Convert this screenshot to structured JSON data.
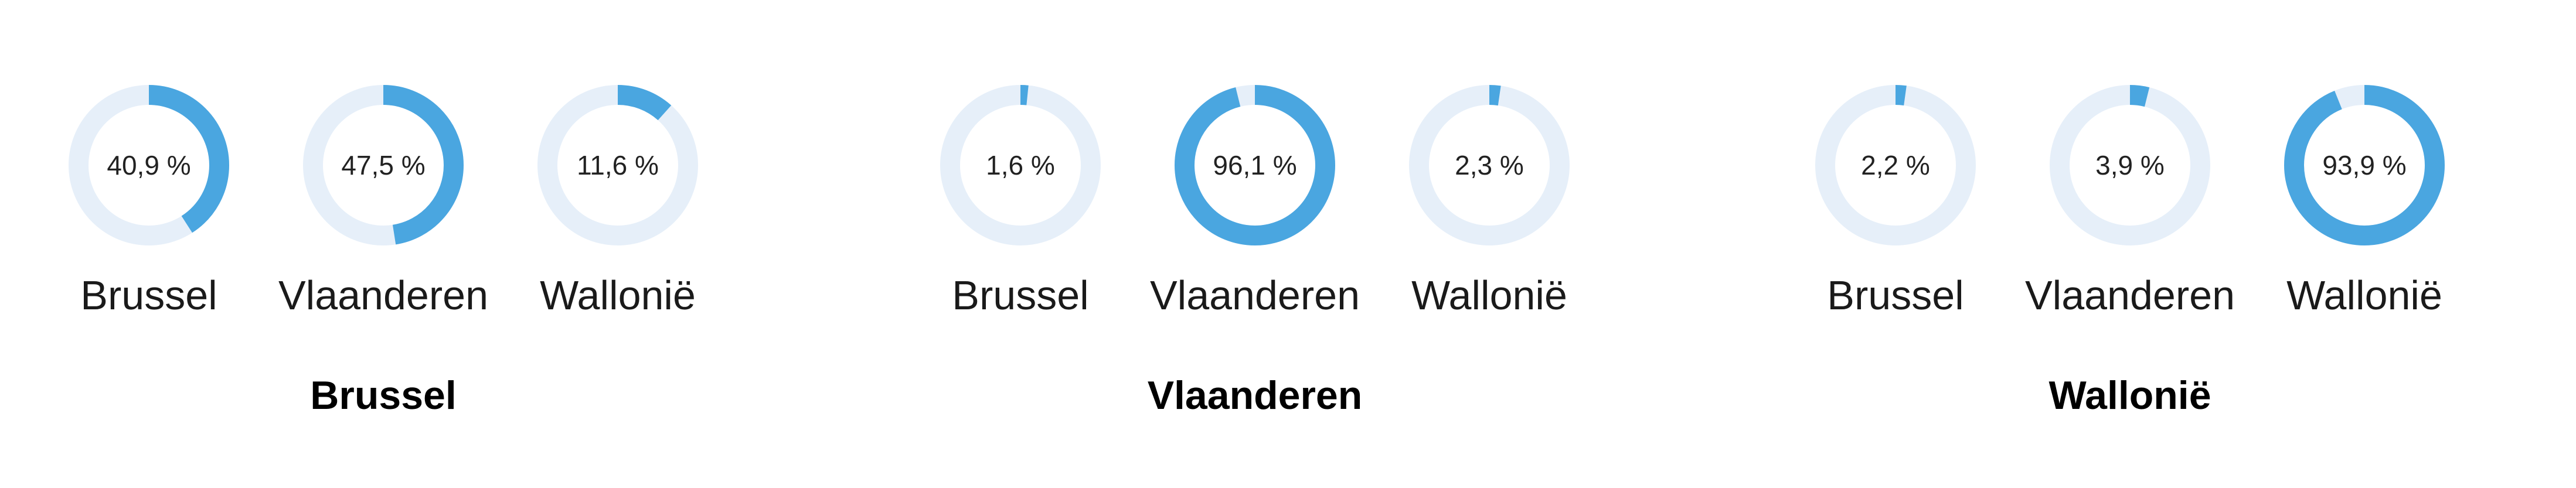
{
  "chart_data": [
    {
      "type": "pie",
      "title": "Brussel",
      "categories": [
        "Brussel",
        "Vlaanderen",
        "Wallonië"
      ],
      "values": [
        40.9,
        47.5,
        11.6
      ],
      "value_labels": [
        "40,9 %",
        "47,5 %",
        "11,6 %"
      ],
      "unit": "%"
    },
    {
      "type": "pie",
      "title": "Vlaanderen",
      "categories": [
        "Brussel",
        "Vlaanderen",
        "Wallonië"
      ],
      "values": [
        1.6,
        96.1,
        2.3
      ],
      "value_labels": [
        "1,6 %",
        "96,1 %",
        "2,3 %"
      ],
      "unit": "%"
    },
    {
      "type": "pie",
      "title": "Wallonië",
      "categories": [
        "Brussel",
        "Vlaanderen",
        "Wallonië"
      ],
      "values": [
        2.2,
        3.9,
        93.9
      ],
      "value_labels": [
        "2,2 %",
        "3,9 %",
        "93,9 %"
      ],
      "unit": "%"
    }
  ],
  "colors": {
    "filled": "#4aa6e0",
    "track": "#e6eff9"
  }
}
